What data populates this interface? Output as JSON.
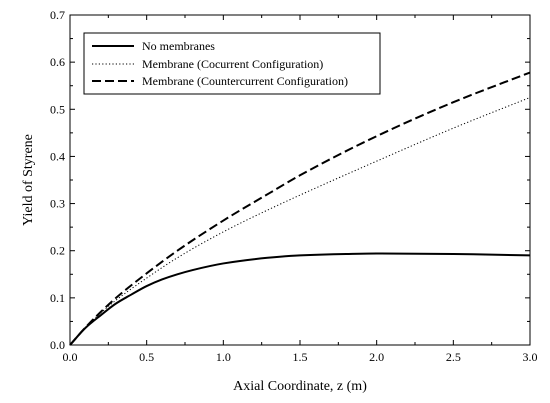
{
  "chart_data": {
    "type": "line",
    "title": "",
    "xlabel": "Axial Coordinate, z (m)",
    "ylabel": "Yield of Styrene",
    "xlim": [
      0,
      3.0
    ],
    "ylim": [
      0,
      0.7
    ],
    "xticks": [
      0,
      0.5,
      1.0,
      1.5,
      2.0,
      2.5,
      3.0
    ],
    "xtick_labels": [
      "0.0",
      "0.5",
      "1.0",
      "1.5",
      "2.0",
      "2.5",
      "3.0"
    ],
    "yticks": [
      0,
      0.1,
      0.2,
      0.3,
      0.4,
      0.5,
      0.6,
      0.7
    ],
    "ytick_labels": [
      "0.0",
      "0.1",
      "0.2",
      "0.3",
      "0.4",
      "0.5",
      "0.6",
      "0.7"
    ],
    "grid": false,
    "legend_position": "top-left",
    "series": [
      {
        "name": "No membranes",
        "style": "solid",
        "x": [
          0,
          0.1,
          0.2,
          0.3,
          0.4,
          0.5,
          0.6,
          0.7,
          0.8,
          1.0,
          1.2,
          1.5,
          1.8,
          2.0,
          2.5,
          3.0
        ],
        "y": [
          0,
          0.036,
          0.063,
          0.088,
          0.107,
          0.125,
          0.139,
          0.15,
          0.159,
          0.173,
          0.182,
          0.19,
          0.193,
          0.194,
          0.193,
          0.19
        ]
      },
      {
        "name": "Membrane (Cocurrent Configuration)",
        "style": "dotted",
        "x": [
          0,
          0.1,
          0.2,
          0.3,
          0.5,
          0.7,
          1.0,
          1.3,
          1.5,
          2.0,
          2.5,
          3.0
        ],
        "y": [
          0,
          0.037,
          0.068,
          0.095,
          0.142,
          0.185,
          0.24,
          0.288,
          0.318,
          0.39,
          0.46,
          0.525
        ]
      },
      {
        "name": "Membrane (Countercurrent Configuration)",
        "style": "dashed",
        "x": [
          0,
          0.1,
          0.2,
          0.3,
          0.5,
          0.7,
          1.0,
          1.3,
          1.5,
          2.0,
          2.5,
          3.0
        ],
        "y": [
          0,
          0.037,
          0.07,
          0.1,
          0.152,
          0.2,
          0.264,
          0.322,
          0.36,
          0.443,
          0.515,
          0.578
        ]
      }
    ]
  }
}
